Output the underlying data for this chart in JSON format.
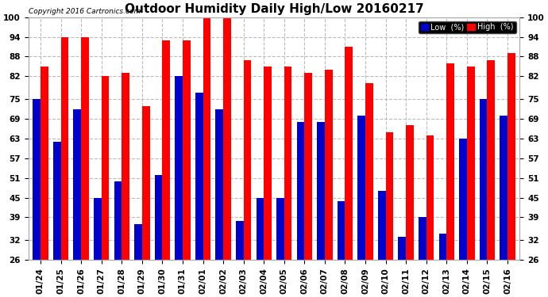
{
  "title": "Outdoor Humidity Daily High/Low 20160217",
  "copyright": "Copyright 2016 Cartronics.com",
  "labels": [
    "01/24",
    "01/25",
    "01/26",
    "01/27",
    "01/28",
    "01/29",
    "01/30",
    "01/31",
    "02/01",
    "02/02",
    "02/03",
    "02/04",
    "02/05",
    "02/06",
    "02/07",
    "02/08",
    "02/09",
    "02/10",
    "02/11",
    "02/12",
    "02/13",
    "02/14",
    "02/15",
    "02/16"
  ],
  "high": [
    85,
    94,
    94,
    82,
    83,
    73,
    93,
    93,
    100,
    100,
    87,
    85,
    85,
    83,
    84,
    91,
    80,
    65,
    67,
    64,
    86,
    85,
    87,
    89
  ],
  "low": [
    75,
    62,
    72,
    45,
    50,
    37,
    52,
    82,
    77,
    72,
    38,
    45,
    45,
    68,
    68,
    44,
    70,
    47,
    33,
    39,
    34,
    63,
    75,
    70
  ],
  "high_color": "#ff0000",
  "low_color": "#0000cc",
  "bg_color": "#ffffff",
  "grid_color": "#bbbbbb",
  "ylim": [
    26,
    100
  ],
  "ymin": 26,
  "yticks": [
    26,
    32,
    39,
    45,
    51,
    57,
    63,
    69,
    75,
    82,
    88,
    94,
    100
  ],
  "bar_width": 0.38,
  "title_fontsize": 11,
  "tick_fontsize": 7.5,
  "legend_low_label": "Low  (%)",
  "legend_high_label": "High  (%)"
}
